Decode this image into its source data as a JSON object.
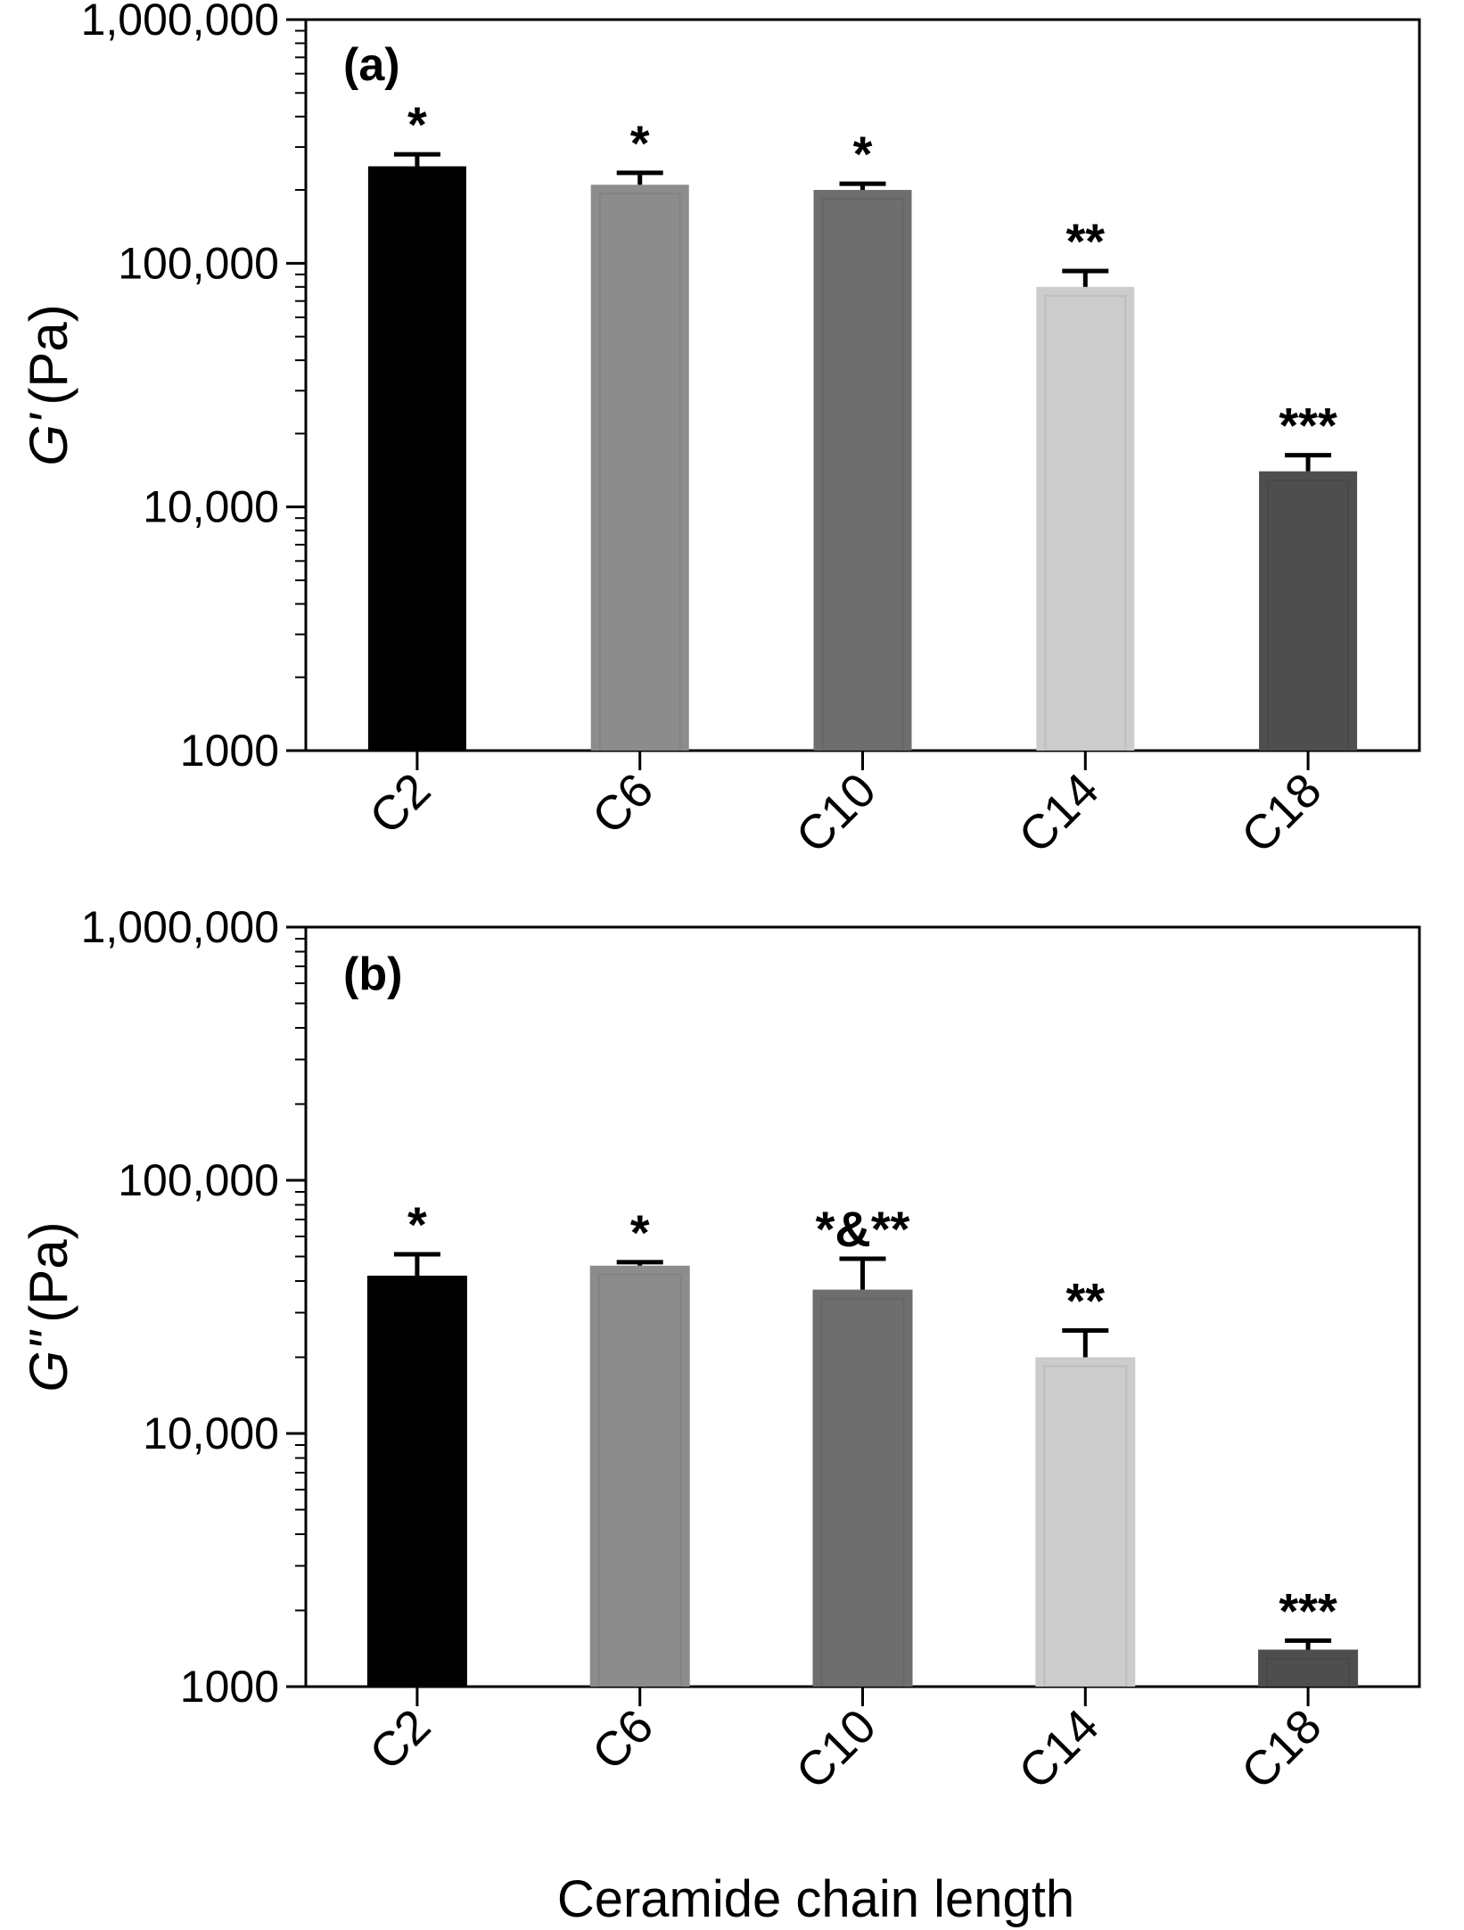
{
  "chart_data": [
    {
      "type": "bar",
      "panel_label": "(a)",
      "ylabel_symbol": "G'",
      "ylabel_unit": "(Pa)",
      "yscale": "log",
      "ylim": [
        1000,
        1000000
      ],
      "ytick_labels": [
        "1000",
        "10,000",
        "100,000",
        "1,000,000"
      ],
      "categories": [
        "C2",
        "C6",
        "C10",
        "C14",
        "C18"
      ],
      "values": [
        250000,
        210000,
        200000,
        80000,
        14000
      ],
      "errors": [
        30000,
        25000,
        12000,
        13000,
        2300
      ],
      "significance": [
        "*",
        "*",
        "*",
        "**",
        "***"
      ],
      "bar_colors": [
        "#000000",
        "#8c8c8c",
        "#6e6e6e",
        "#cccccc",
        "#4e4e4e"
      ],
      "grid": false
    },
    {
      "type": "bar",
      "panel_label": "(b)",
      "ylabel_symbol": "G\"",
      "ylabel_unit": "(Pa)",
      "yscale": "log",
      "ylim": [
        1000,
        1000000
      ],
      "ytick_labels": [
        "1000",
        "10,000",
        "100,000",
        "1,000,000"
      ],
      "categories": [
        "C2",
        "C6",
        "C10",
        "C14",
        "C18"
      ],
      "values": [
        42000,
        46000,
        37000,
        20000,
        1400
      ],
      "errors": [
        9000,
        1500,
        12000,
        5500,
        120
      ],
      "significance": [
        "*",
        "*",
        "*&**",
        "**",
        "***"
      ],
      "bar_colors": [
        "#000000",
        "#8c8c8c",
        "#6e6e6e",
        "#cccccc",
        "#4e4e4e"
      ],
      "grid": false
    }
  ],
  "xlabel": "Ceramide chain length"
}
